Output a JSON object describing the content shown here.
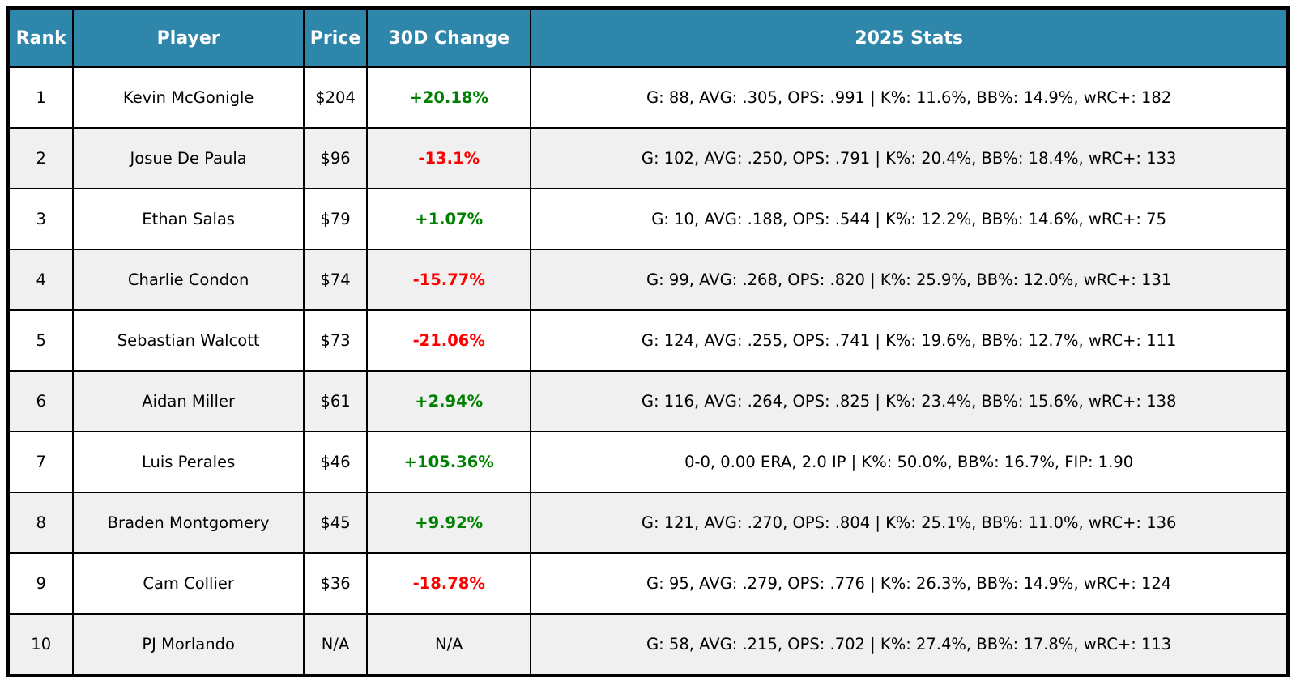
{
  "colors": {
    "header_bg": "#2E86AB",
    "header_text": "#ffffff",
    "positive": "#008000",
    "negative": "#ff0000",
    "row_alt_bg": "#f0f0f0",
    "border": "#000000"
  },
  "table": {
    "columns": {
      "rank": "Rank",
      "player": "Player",
      "price": "Price",
      "change": "30D Change",
      "stats": "2025 Stats"
    },
    "rows": [
      {
        "rank": "1",
        "player": "Kevin McGonigle",
        "price": "$204",
        "change": "+20.18%",
        "change_direction": "up",
        "stats": "G: 88, AVG: .305, OPS: .991 | K%: 11.6%, BB%: 14.9%, wRC+: 182"
      },
      {
        "rank": "2",
        "player": "Josue De Paula",
        "price": "$96",
        "change": "-13.1%",
        "change_direction": "down",
        "stats": "G: 102, AVG: .250, OPS: .791 | K%: 20.4%, BB%: 18.4%, wRC+: 133"
      },
      {
        "rank": "3",
        "player": "Ethan Salas",
        "price": "$79",
        "change": "+1.07%",
        "change_direction": "up",
        "stats": "G: 10, AVG: .188, OPS: .544 | K%: 12.2%, BB%: 14.6%, wRC+: 75"
      },
      {
        "rank": "4",
        "player": "Charlie Condon",
        "price": "$74",
        "change": "-15.77%",
        "change_direction": "down",
        "stats": "G: 99, AVG: .268, OPS: .820 | K%: 25.9%, BB%: 12.0%, wRC+: 131"
      },
      {
        "rank": "5",
        "player": "Sebastian Walcott",
        "price": "$73",
        "change": "-21.06%",
        "change_direction": "down",
        "stats": "G: 124, AVG: .255, OPS: .741 | K%: 19.6%, BB%: 12.7%, wRC+: 111"
      },
      {
        "rank": "6",
        "player": "Aidan Miller",
        "price": "$61",
        "change": "+2.94%",
        "change_direction": "up",
        "stats": "G: 116, AVG: .264, OPS: .825 | K%: 23.4%, BB%: 15.6%, wRC+: 138"
      },
      {
        "rank": "7",
        "player": "Luis Perales",
        "price": "$46",
        "change": "+105.36%",
        "change_direction": "up",
        "stats": "0-0, 0.00 ERA, 2.0 IP | K%: 50.0%, BB%: 16.7%, FIP: 1.90"
      },
      {
        "rank": "8",
        "player": "Braden Montgomery",
        "price": "$45",
        "change": "+9.92%",
        "change_direction": "up",
        "stats": "G: 121, AVG: .270, OPS: .804 | K%: 25.1%, BB%: 11.0%, wRC+: 136"
      },
      {
        "rank": "9",
        "player": "Cam Collier",
        "price": "$36",
        "change": "-18.78%",
        "change_direction": "down",
        "stats": "G: 95, AVG: .279, OPS: .776 | K%: 26.3%, BB%: 14.9%, wRC+: 124"
      },
      {
        "rank": "10",
        "player": "PJ Morlando",
        "price": "N/A",
        "change": "N/A",
        "change_direction": "neutral",
        "stats": "G: 58, AVG: .215, OPS: .702 | K%: 27.4%, BB%: 17.8%, wRC+: 113"
      }
    ]
  }
}
